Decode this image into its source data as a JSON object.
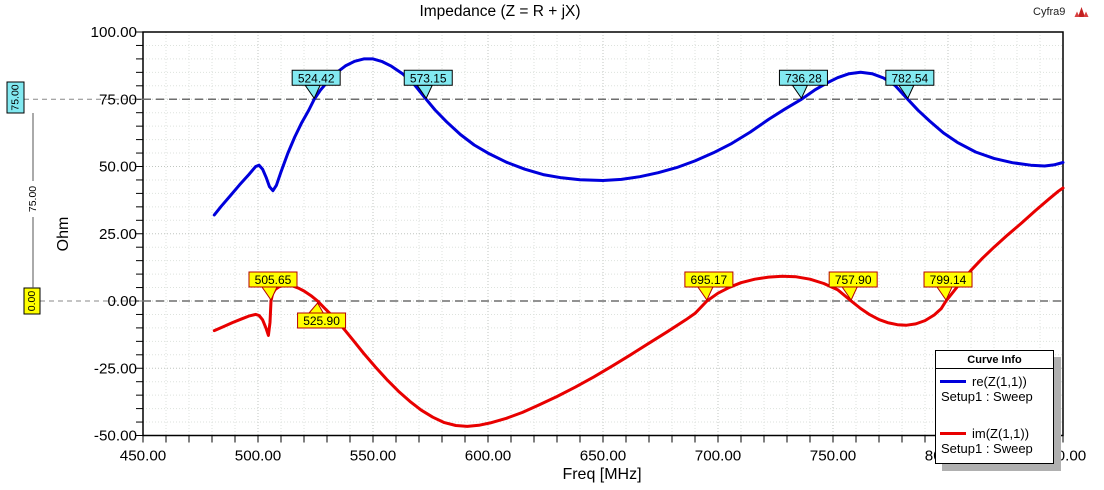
{
  "header": {
    "title": "Impedance (Z = R + jX)",
    "watermark": "Cyfra9"
  },
  "chart_data": {
    "type": "line",
    "title": "Impedance (Z = R + jX)",
    "xlabel": "Freq [MHz]",
    "ylabel": "Ohm",
    "xlim": [
      450,
      850
    ],
    "ylim": [
      -50,
      100
    ],
    "x_major_ticks": [
      450,
      500,
      550,
      600,
      650,
      700,
      750,
      800,
      850
    ],
    "y_major_ticks": [
      100,
      75,
      50,
      25,
      0,
      -25,
      -50
    ],
    "x_minor_step": 10,
    "y_minor_step": 5,
    "grid": true,
    "legend_position": "bottom-right",
    "series": [
      {
        "name": "re(Z(1,1))",
        "setup": "Setup1 : Sweep",
        "color": "#0000dc",
        "points": [
          [
            481,
            32
          ],
          [
            484,
            35.2
          ],
          [
            488,
            39.2
          ],
          [
            492,
            43.2
          ],
          [
            496,
            47
          ],
          [
            499,
            50
          ],
          [
            500.5,
            50.5
          ],
          [
            502,
            49
          ],
          [
            503.5,
            46
          ],
          [
            505,
            42.5
          ],
          [
            506.5,
            41
          ],
          [
            508,
            43
          ],
          [
            510,
            48
          ],
          [
            513,
            55
          ],
          [
            516,
            61
          ],
          [
            519,
            66.3
          ],
          [
            522,
            70.8
          ],
          [
            524.42,
            75
          ],
          [
            527,
            78.2
          ],
          [
            530,
            81.3
          ],
          [
            534,
            84.8
          ],
          [
            538,
            87.4
          ],
          [
            542,
            89.1
          ],
          [
            546,
            90
          ],
          [
            550,
            90
          ],
          [
            554,
            89
          ],
          [
            558,
            87.3
          ],
          [
            563,
            84.4
          ],
          [
            568,
            80.4
          ],
          [
            573.15,
            75
          ],
          [
            577,
            71
          ],
          [
            582,
            66.6
          ],
          [
            588,
            61.9
          ],
          [
            594,
            58
          ],
          [
            600,
            55
          ],
          [
            608,
            51.6
          ],
          [
            616,
            49
          ],
          [
            624,
            47
          ],
          [
            632,
            45.8
          ],
          [
            640,
            45.1
          ],
          [
            650,
            44.8
          ],
          [
            658,
            45.2
          ],
          [
            666,
            46.2
          ],
          [
            674,
            47.7
          ],
          [
            682,
            49.6
          ],
          [
            690,
            52.1
          ],
          [
            698,
            55.1
          ],
          [
            706,
            58.6
          ],
          [
            714,
            62.8
          ],
          [
            722,
            67.5
          ],
          [
            729,
            71.3
          ],
          [
            736.28,
            75
          ],
          [
            742,
            78.4
          ],
          [
            747,
            80.9
          ],
          [
            752,
            83
          ],
          [
            757,
            84.5
          ],
          [
            762,
            85
          ],
          [
            767,
            84.5
          ],
          [
            772,
            82.9
          ],
          [
            777,
            80.1
          ],
          [
            782.54,
            75
          ],
          [
            787,
            70.9
          ],
          [
            792,
            66.9
          ],
          [
            798,
            62.5
          ],
          [
            804,
            59
          ],
          [
            812,
            55.4
          ],
          [
            820,
            53
          ],
          [
            828,
            51.4
          ],
          [
            836,
            50.5
          ],
          [
            842,
            50.2
          ],
          [
            846,
            50.6
          ],
          [
            850,
            51.5
          ]
        ]
      },
      {
        "name": "im(Z(1,1))",
        "setup": "Setup1 : Sweep",
        "color": "#e80000",
        "points": [
          [
            481,
            -11
          ],
          [
            485,
            -9.5
          ],
          [
            489,
            -8
          ],
          [
            493,
            -6.6
          ],
          [
            496,
            -5.6
          ],
          [
            499,
            -5
          ],
          [
            500.5,
            -5.4
          ],
          [
            502,
            -7
          ],
          [
            503.5,
            -10.2
          ],
          [
            504.5,
            -12.8
          ],
          [
            505.2,
            -8
          ],
          [
            505.65,
            0
          ],
          [
            506.3,
            2.6
          ],
          [
            507.5,
            4.3
          ],
          [
            509,
            5.2
          ],
          [
            511,
            5.8
          ],
          [
            513,
            5.9
          ],
          [
            515,
            5.6
          ],
          [
            517.5,
            4.8
          ],
          [
            520,
            3.7
          ],
          [
            523,
            2
          ],
          [
            525.9,
            0
          ],
          [
            529,
            -2.7
          ],
          [
            533,
            -6.1
          ],
          [
            537,
            -10
          ],
          [
            541,
            -14.2
          ],
          [
            546,
            -19.5
          ],
          [
            551,
            -24.5
          ],
          [
            556,
            -29.2
          ],
          [
            561,
            -33.5
          ],
          [
            566,
            -37.3
          ],
          [
            571,
            -40.6
          ],
          [
            576,
            -43.2
          ],
          [
            581,
            -45.2
          ],
          [
            586,
            -46.3
          ],
          [
            591,
            -46.6
          ],
          [
            596,
            -46.2
          ],
          [
            601,
            -45.3
          ],
          [
            608,
            -43.6
          ],
          [
            615,
            -41.4
          ],
          [
            622,
            -38.7
          ],
          [
            630,
            -35.5
          ],
          [
            638,
            -32
          ],
          [
            646,
            -28.2
          ],
          [
            654,
            -24.2
          ],
          [
            662,
            -20
          ],
          [
            670,
            -15.7
          ],
          [
            678,
            -11.4
          ],
          [
            686,
            -7
          ],
          [
            690,
            -4.6
          ],
          [
            695.17,
            0
          ],
          [
            700,
            2.9
          ],
          [
            705,
            5.1
          ],
          [
            710,
            6.8
          ],
          [
            716,
            8.1
          ],
          [
            722,
            8.9
          ],
          [
            728,
            9.2
          ],
          [
            734,
            9
          ],
          [
            740,
            8.1
          ],
          [
            746,
            6.5
          ],
          [
            752,
            4.2
          ],
          [
            757.9,
            0
          ],
          [
            762,
            -2.8
          ],
          [
            766,
            -5.1
          ],
          [
            770,
            -6.9
          ],
          [
            774,
            -8.1
          ],
          [
            778,
            -8.8
          ],
          [
            782,
            -9
          ],
          [
            786,
            -8.5
          ],
          [
            790,
            -7.3
          ],
          [
            794,
            -5.2
          ],
          [
            797,
            -2.9
          ],
          [
            799.14,
            0
          ],
          [
            802,
            3.1
          ],
          [
            806,
            7.4
          ],
          [
            810,
            11.4
          ],
          [
            815,
            15.9
          ],
          [
            820,
            20
          ],
          [
            826,
            24.6
          ],
          [
            832,
            29
          ],
          [
            838,
            33.6
          ],
          [
            844,
            38
          ],
          [
            848,
            40.8
          ],
          [
            850,
            42
          ]
        ]
      }
    ],
    "reference_lines": [
      {
        "value": 75,
        "label": "75.00",
        "box_fill": "#82e9f1",
        "box_border": "#000000"
      },
      {
        "value": 0,
        "label": "0.00",
        "box_fill": "#ffff00",
        "box_border": "#000000"
      }
    ],
    "delta_label": "75.00",
    "curve_markers": [
      {
        "label": "524.42",
        "x": 524.42,
        "y": 75,
        "fill": "#82e9f1",
        "border": "#000000",
        "side": "above"
      },
      {
        "label": "573.15",
        "x": 573.15,
        "y": 75,
        "fill": "#82e9f1",
        "border": "#000000",
        "side": "above"
      },
      {
        "label": "736.28",
        "x": 736.28,
        "y": 75,
        "fill": "#82e9f1",
        "border": "#000000",
        "side": "above"
      },
      {
        "label": "782.54",
        "x": 782.54,
        "y": 75,
        "fill": "#82e9f1",
        "border": "#000000",
        "side": "above"
      },
      {
        "label": "505.65",
        "x": 505.65,
        "y": 0,
        "fill": "#ffff00",
        "border": "#b40000",
        "side": "above"
      },
      {
        "label": "525.90",
        "x": 525.9,
        "y": 0,
        "fill": "#ffff00",
        "border": "#b40000",
        "side": "below"
      },
      {
        "label": "695.17",
        "x": 695.17,
        "y": 0,
        "fill": "#ffff00",
        "border": "#b40000",
        "side": "above"
      },
      {
        "label": "757.90",
        "x": 757.9,
        "y": 0,
        "fill": "#ffff00",
        "border": "#b40000",
        "side": "above"
      },
      {
        "label": "799.14",
        "x": 799.14,
        "y": 0,
        "fill": "#ffff00",
        "border": "#b40000",
        "side": "above"
      }
    ],
    "legend": {
      "title": "Curve Info",
      "entries": [
        {
          "name": "re(Z(1,1))",
          "setup": "Setup1 : Sweep",
          "color": "#0000dc"
        },
        {
          "name": "im(Z(1,1))",
          "setup": "Setup1 : Sweep",
          "color": "#e80000"
        }
      ]
    },
    "colors": {
      "grid_major": "#c0c6c0",
      "grid_minor": "#dde2dd",
      "reference_dash": "#6e6e6e",
      "frame": "#000000",
      "logo_red": "#c42020"
    }
  }
}
